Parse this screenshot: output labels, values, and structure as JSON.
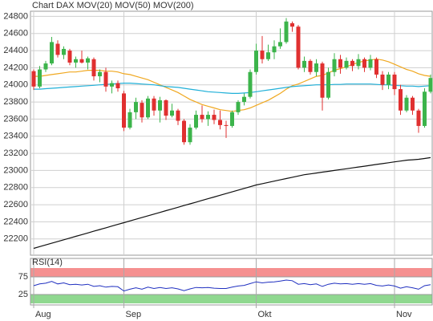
{
  "chart_data": [
    {
      "type": "candlestick",
      "title": "Chart DAX",
      "title_color": "#e05030",
      "categories": [
        "Aug",
        null,
        null,
        null,
        null,
        null,
        null,
        null,
        null,
        null,
        null,
        null,
        null,
        null,
        null,
        "Sep",
        null,
        null,
        null,
        null,
        null,
        null,
        null,
        null,
        null,
        null,
        null,
        null,
        null,
        null,
        null,
        null,
        null,
        null,
        null,
        null,
        null,
        "Okt",
        null,
        null,
        null,
        null,
        null,
        null,
        null,
        null,
        null,
        null,
        null,
        null,
        null,
        null,
        null,
        null,
        null,
        null,
        null,
        null,
        null,
        null,
        "Nov",
        null,
        null,
        null,
        null,
        null,
        null
      ],
      "open": [
        24160,
        23980,
        24180,
        24250,
        24480,
        24350,
        24400,
        24260,
        24300,
        24260,
        24300,
        24100,
        24150,
        23980,
        24020,
        23900,
        23500,
        23680,
        23790,
        23620,
        23840,
        23700,
        23820,
        23640,
        23700,
        23580,
        23330,
        23500,
        23650,
        23600,
        23650,
        23590,
        23530,
        23520,
        23680,
        23800,
        23860,
        24150,
        24400,
        24300,
        24380,
        24450,
        24500,
        24720,
        24680,
        24200,
        24280,
        24150,
        24250,
        23850,
        24150,
        24300,
        24200,
        24280,
        24220,
        24300,
        24200,
        24300,
        24120,
        24000,
        24120,
        23950,
        23700,
        23850,
        23700,
        23520,
        23920
      ],
      "high": [
        24180,
        24220,
        24280,
        24560,
        24520,
        24450,
        24420,
        24330,
        24400,
        24330,
        24320,
        24180,
        24200,
        24050,
        24050,
        23930,
        23720,
        23850,
        23820,
        23870,
        23870,
        23860,
        23830,
        23780,
        23720,
        23600,
        23540,
        23700,
        23760,
        23690,
        23710,
        23700,
        23580,
        23700,
        23820,
        23900,
        24180,
        24480,
        24570,
        24470,
        24520,
        24660,
        24780,
        24740,
        24700,
        24330,
        24300,
        24300,
        24270,
        24200,
        24370,
        24350,
        24320,
        24300,
        24360,
        24320,
        24350,
        24320,
        24160,
        24150,
        24150,
        24000,
        23880,
        23870,
        23720,
        23960,
        24120
      ],
      "low": [
        23940,
        23960,
        24150,
        24230,
        24320,
        24300,
        24230,
        24200,
        24250,
        24180,
        24050,
        24030,
        23920,
        23900,
        23920,
        23460,
        23480,
        23600,
        23560,
        23600,
        23640,
        23560,
        23590,
        23620,
        23530,
        23300,
        23300,
        23480,
        23560,
        23520,
        23540,
        23480,
        23380,
        23500,
        23650,
        23760,
        23840,
        24120,
        24250,
        24280,
        24300,
        24420,
        24480,
        24620,
        24180,
        24150,
        24120,
        24100,
        23700,
        23830,
        24100,
        24130,
        24180,
        24160,
        24180,
        24150,
        24170,
        24080,
        23940,
        23950,
        23880,
        23650,
        23680,
        23650,
        23440,
        23500,
        23900
      ],
      "close": [
        23980,
        24180,
        24250,
        24500,
        24350,
        24420,
        24260,
        24300,
        24260,
        24310,
        24100,
        24150,
        23980,
        24020,
        23960,
        23500,
        23680,
        23800,
        23620,
        23840,
        23700,
        23820,
        23640,
        23700,
        23580,
        23330,
        23500,
        23650,
        23600,
        23650,
        23590,
        23530,
        23520,
        23680,
        23800,
        23860,
        24150,
        24400,
        24300,
        24380,
        24450,
        24500,
        24740,
        24680,
        24200,
        24280,
        24150,
        24250,
        23850,
        24150,
        24300,
        24200,
        24280,
        24220,
        24300,
        24200,
        24300,
        24120,
        24000,
        24120,
        23950,
        23700,
        23850,
        23700,
        23520,
        23920,
        24080
      ],
      "up_color": "#3cb44b",
      "down_color": "#e03030",
      "series": [
        {
          "name": "MOV(20)",
          "color": "#f0a820",
          "values": [
            24100,
            24100,
            24110,
            24120,
            24130,
            24140,
            24150,
            24150,
            24160,
            24170,
            24170,
            24170,
            24160,
            24160,
            24150,
            24130,
            24120,
            24100,
            24080,
            24060,
            24030,
            24000,
            23970,
            23940,
            23910,
            23870,
            23830,
            23800,
            23770,
            23750,
            23730,
            23710,
            23700,
            23690,
            23700,
            23710,
            23730,
            23760,
            23790,
            23820,
            23860,
            23900,
            23950,
            23990,
            24010,
            24040,
            24070,
            24100,
            24110,
            24140,
            24170,
            24190,
            24210,
            24240,
            24260,
            24280,
            24290,
            24300,
            24290,
            24270,
            24240,
            24210,
            24180,
            24160,
            24130,
            24110,
            24100
          ]
        },
        {
          "name": "MOV(50)",
          "color": "#20b0d8",
          "values": [
            23950,
            23950,
            23955,
            23960,
            23965,
            23970,
            23975,
            23980,
            23985,
            23990,
            23995,
            24000,
            24005,
            24010,
            24015,
            24020,
            24020,
            24015,
            24010,
            24005,
            24000,
            23990,
            23980,
            23975,
            23970,
            23960,
            23950,
            23940,
            23930,
            23920,
            23915,
            23910,
            23905,
            23900,
            23900,
            23905,
            23910,
            23920,
            23930,
            23940,
            23950,
            23960,
            23970,
            23980,
            23985,
            23990,
            23995,
            24000,
            24000,
            24000,
            24005,
            24005,
            24010,
            24010,
            24010,
            24010,
            24010,
            24005,
            24000,
            24000,
            23995,
            23990,
            23985,
            23985,
            23980,
            23985,
            23990
          ]
        },
        {
          "name": "MOV(200)",
          "color": "#111111",
          "values": [
            22090,
            22110,
            22130,
            22150,
            22170,
            22190,
            22210,
            22230,
            22250,
            22270,
            22290,
            22310,
            22330,
            22350,
            22370,
            22390,
            22410,
            22430,
            22450,
            22470,
            22490,
            22510,
            22530,
            22550,
            22570,
            22590,
            22610,
            22630,
            22650,
            22670,
            22690,
            22710,
            22730,
            22750,
            22770,
            22790,
            22810,
            22830,
            22845,
            22860,
            22875,
            22890,
            22905,
            22920,
            22935,
            22950,
            22960,
            22970,
            22980,
            22990,
            23000,
            23010,
            23020,
            23030,
            23040,
            23050,
            23060,
            23070,
            23080,
            23090,
            23100,
            23110,
            23120,
            23125,
            23130,
            23140,
            23150
          ]
        }
      ],
      "ylim": [
        22010,
        24860
      ],
      "yticks": [
        22200,
        22400,
        22600,
        22800,
        23000,
        23200,
        23400,
        23600,
        23800,
        24000,
        24200,
        24400,
        24600,
        24800
      ],
      "grid": true
    },
    {
      "type": "line",
      "title": "RSI(14)",
      "color": "#2030c0",
      "values": [
        50,
        55,
        57,
        62,
        55,
        58,
        53,
        54,
        52,
        54,
        48,
        50,
        46,
        48,
        47,
        35,
        40,
        44,
        40,
        46,
        42,
        45,
        42,
        44,
        41,
        36,
        41,
        45,
        44,
        45,
        43,
        42,
        42,
        46,
        49,
        51,
        56,
        61,
        58,
        60,
        61,
        63,
        66,
        64,
        54,
        56,
        53,
        55,
        48,
        54,
        57,
        55,
        56,
        54,
        56,
        54,
        56,
        51,
        49,
        52,
        49,
        43,
        47,
        44,
        40,
        50,
        53
      ],
      "ylim": [
        0,
        100
      ],
      "yticks": [
        25,
        75
      ],
      "bands": [
        {
          "from": 75,
          "to": 100,
          "color": "#f59090"
        },
        {
          "from": 0,
          "to": 25,
          "color": "#8fd88f"
        }
      ],
      "grid": true
    }
  ]
}
